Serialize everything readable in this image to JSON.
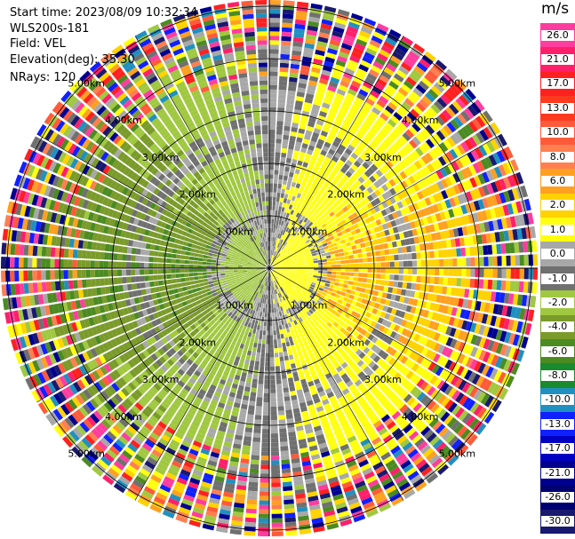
{
  "info": {
    "start_time": "Start time: 2023/08/09 10:32:34",
    "instrument": "WLS200s-181",
    "field": "Field: VEL",
    "elevation": "Elevation(deg): 35.30",
    "nrays": "NRays: 120"
  },
  "colorbar": {
    "unit": "m/s",
    "ticks": [
      "26.0",
      "21.0",
      "17.0",
      "13.0",
      "10.0",
      "8.0",
      "6.0",
      "2.0",
      "1.0",
      "0.0",
      "-1.0",
      "-2.0",
      "-4.0",
      "-6.0",
      "-8.0",
      "-10.0",
      "-13.0",
      "-17.0",
      "-21.0",
      "-26.0",
      "-30.0"
    ],
    "colors": [
      "#ff3d9e",
      "#ff1f6a",
      "#ff2020",
      "#ff3a1f",
      "#ff5a3a",
      "#ff7f50",
      "#ffa020",
      "#ffd200",
      "#ffff10",
      "#a8a8a8",
      "#707070",
      "#a0c840",
      "#7a9b2a",
      "#4b8b22",
      "#1a8a2e",
      "#2090c0",
      "#1020ff",
      "#0000c0",
      "#000090",
      "#000070",
      "#191970"
    ]
  },
  "range_labels": [
    "1.00km",
    "2.00km",
    "3.00km",
    "4.00km",
    "5.00km"
  ],
  "range_rings_km": [
    1,
    2,
    3,
    4,
    5
  ]
}
